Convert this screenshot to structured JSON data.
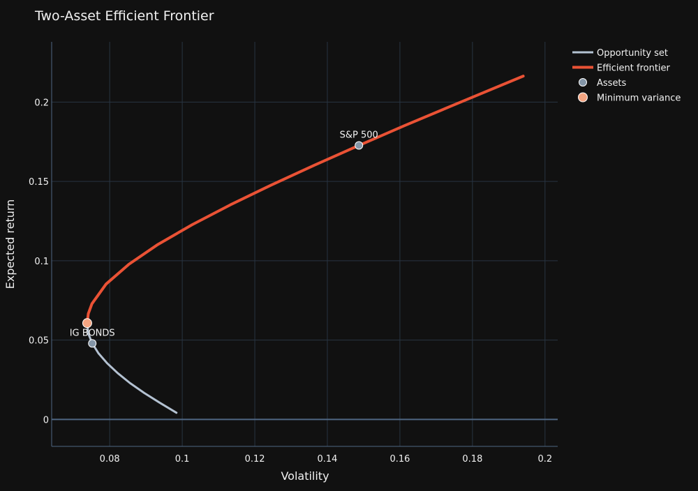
{
  "chart_data": {
    "type": "line",
    "title": "Two-Asset Efficient Frontier",
    "xlabel": "Volatility",
    "ylabel": "Expected return",
    "xlim": [
      0.064,
      0.2035
    ],
    "ylim": [
      -0.017,
      0.238
    ],
    "xticks": [
      0.08,
      0.1,
      0.12,
      0.14,
      0.16,
      0.18,
      0.2
    ],
    "xtick_labels": [
      "0.08",
      "0.1",
      "0.12",
      "0.14",
      "0.16",
      "0.18",
      "0.2"
    ],
    "yticks": [
      0,
      0.05,
      0.1,
      0.15,
      0.2
    ],
    "ytick_labels": [
      "0",
      "0.05",
      "0.1",
      "0.15",
      "0.2"
    ],
    "grid": true,
    "legend_position": "top-right outside",
    "series": [
      {
        "name": "Opportunity set",
        "mode": "line",
        "color": "#b4c2d2",
        "x": [
          0.0984,
          0.0938,
          0.0895,
          0.0856,
          0.0822,
          0.0793,
          0.0769,
          0.0752,
          0.0741,
          0.0738
        ],
        "y": [
          0.0042,
          0.0105,
          0.0167,
          0.0229,
          0.0292,
          0.0354,
          0.0417,
          0.0479,
          0.0541,
          0.0607
        ]
      },
      {
        "name": "Efficient frontier",
        "mode": "line",
        "color": "#ea5235",
        "x": [
          0.0738,
          0.0741,
          0.0751,
          0.079,
          0.0853,
          0.0933,
          0.1028,
          0.1133,
          0.1245,
          0.1364,
          0.1487,
          0.1613,
          0.1743,
          0.194
        ],
        "y": [
          0.0607,
          0.0666,
          0.0729,
          0.0853,
          0.0978,
          0.1103,
          0.1228,
          0.1353,
          0.1477,
          0.1602,
          0.1727,
          0.1852,
          0.1977,
          0.2164
        ]
      },
      {
        "name": "Assets",
        "mode": "markers",
        "color": "#8496a8",
        "points": [
          {
            "label": "S&P 500",
            "x": 0.1487,
            "y": 0.1727
          },
          {
            "label": "IG BONDS",
            "x": 0.0752,
            "y": 0.0479
          }
        ]
      },
      {
        "name": "Minimum variance",
        "mode": "markers",
        "color": "#f4a582",
        "points": [
          {
            "x": 0.0738,
            "y": 0.0607
          }
        ]
      }
    ]
  }
}
